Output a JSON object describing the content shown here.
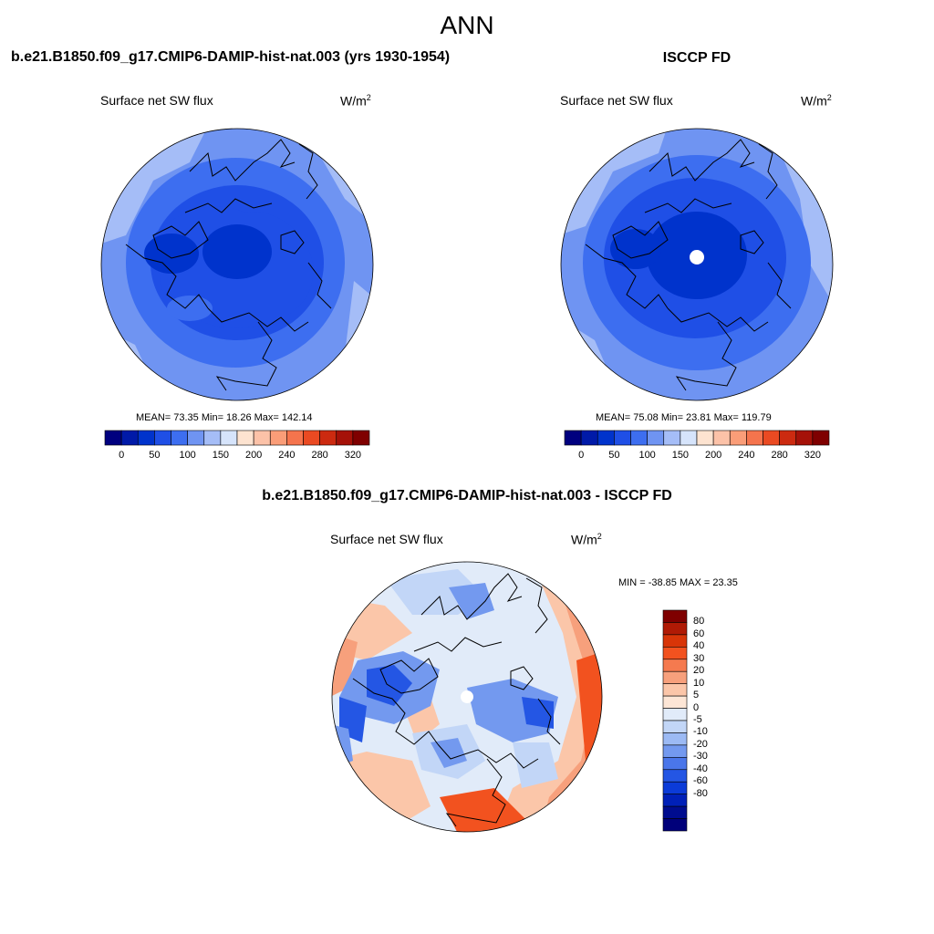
{
  "figure": {
    "season": "ANN",
    "panel1": {
      "title": "b.e21.B1850.f09_g17.CMIP6-DAMIP-hist-nat.003 (yrs 1930-1954)",
      "field": "Surface net SW flux",
      "unit": "W/m",
      "unit_sup": "2",
      "stats": "MEAN=  73.35  Min=  18.26  Max= 142.14"
    },
    "panel2": {
      "title": "ISCCP FD",
      "field": "Surface net SW flux",
      "unit": "W/m",
      "unit_sup": "2",
      "stats": "MEAN=  75.08  Min=  23.81  Max= 119.79"
    },
    "panel3": {
      "title": "b.e21.B1850.f09_g17.CMIP6-DAMIP-hist-nat.003 - ISCCP FD",
      "field": "Surface net SW flux",
      "unit": "W/m",
      "unit_sup": "2",
      "stats": "MIN = -38.85 MAX =  23.35"
    },
    "abs_colorbar": {
      "colors": [
        "#00007f",
        "#001aa8",
        "#0033cc",
        "#1f4fe6",
        "#3d6ef0",
        "#6f94f2",
        "#a5bdf7",
        "#d6e4fb",
        "#fde3d0",
        "#fcc2a8",
        "#fa9d78",
        "#f5744d",
        "#ea4a22",
        "#cc2a10",
        "#a51108",
        "#7f0000"
      ],
      "tick_labels": [
        "0",
        "50",
        "100",
        "150",
        "200",
        "240",
        "280",
        "320"
      ]
    },
    "diff_colorbar": {
      "colors": [
        "#7f0000",
        "#b01a05",
        "#d83508",
        "#f2521f",
        "#f57a4f",
        "#f7a07c",
        "#fbc6a9",
        "#fde6d6",
        "#e1ebf9",
        "#c2d6f7",
        "#9cbaf4",
        "#7399ef",
        "#4a76ea",
        "#2456e4",
        "#0b3bd8",
        "#0020b8",
        "#000c8f",
        "#00007a"
      ],
      "tick_labels": [
        "80",
        "60",
        "40",
        "30",
        "20",
        "10",
        "5",
        "0",
        "-5",
        "-10",
        "-20",
        "-30",
        "-40",
        "-60",
        "-80"
      ]
    },
    "diff_palette": {
      "deep_blue": "#2456e4",
      "mid_blue": "#7399ef",
      "light_blue": "#c2d6f7",
      "pale": "#e1ebf9",
      "light_red": "#fbc6a9",
      "mid_red": "#f7a07c",
      "deep_red": "#f2521f"
    }
  }
}
